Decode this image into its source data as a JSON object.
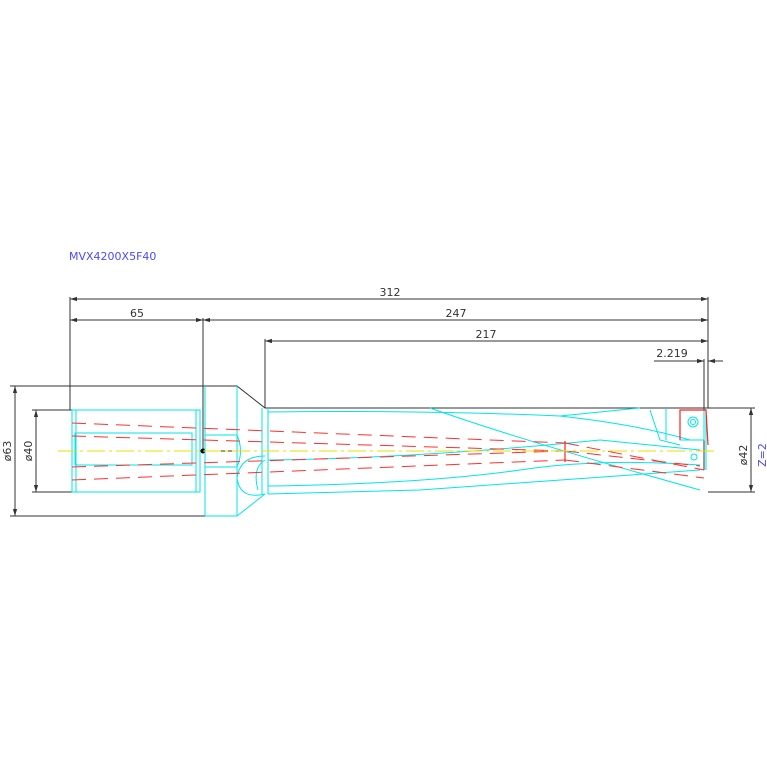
{
  "drawing": {
    "title": "MVX4200X5F40",
    "dimensions": {
      "overall_length": "312",
      "shank_length": "65",
      "body_length": "247",
      "flute_length": "217",
      "tip_offset": "2.219",
      "shank_outer_diameter": "ø63",
      "shank_diameter": "ø40",
      "drill_diameter": "ø42",
      "teeth_count": "Z=2"
    },
    "colors": {
      "outline": "#333333",
      "geometry": "#00e5ee",
      "coolant": "#ff3030",
      "centerline": "#e8e000",
      "label": "#4a4aff"
    }
  }
}
